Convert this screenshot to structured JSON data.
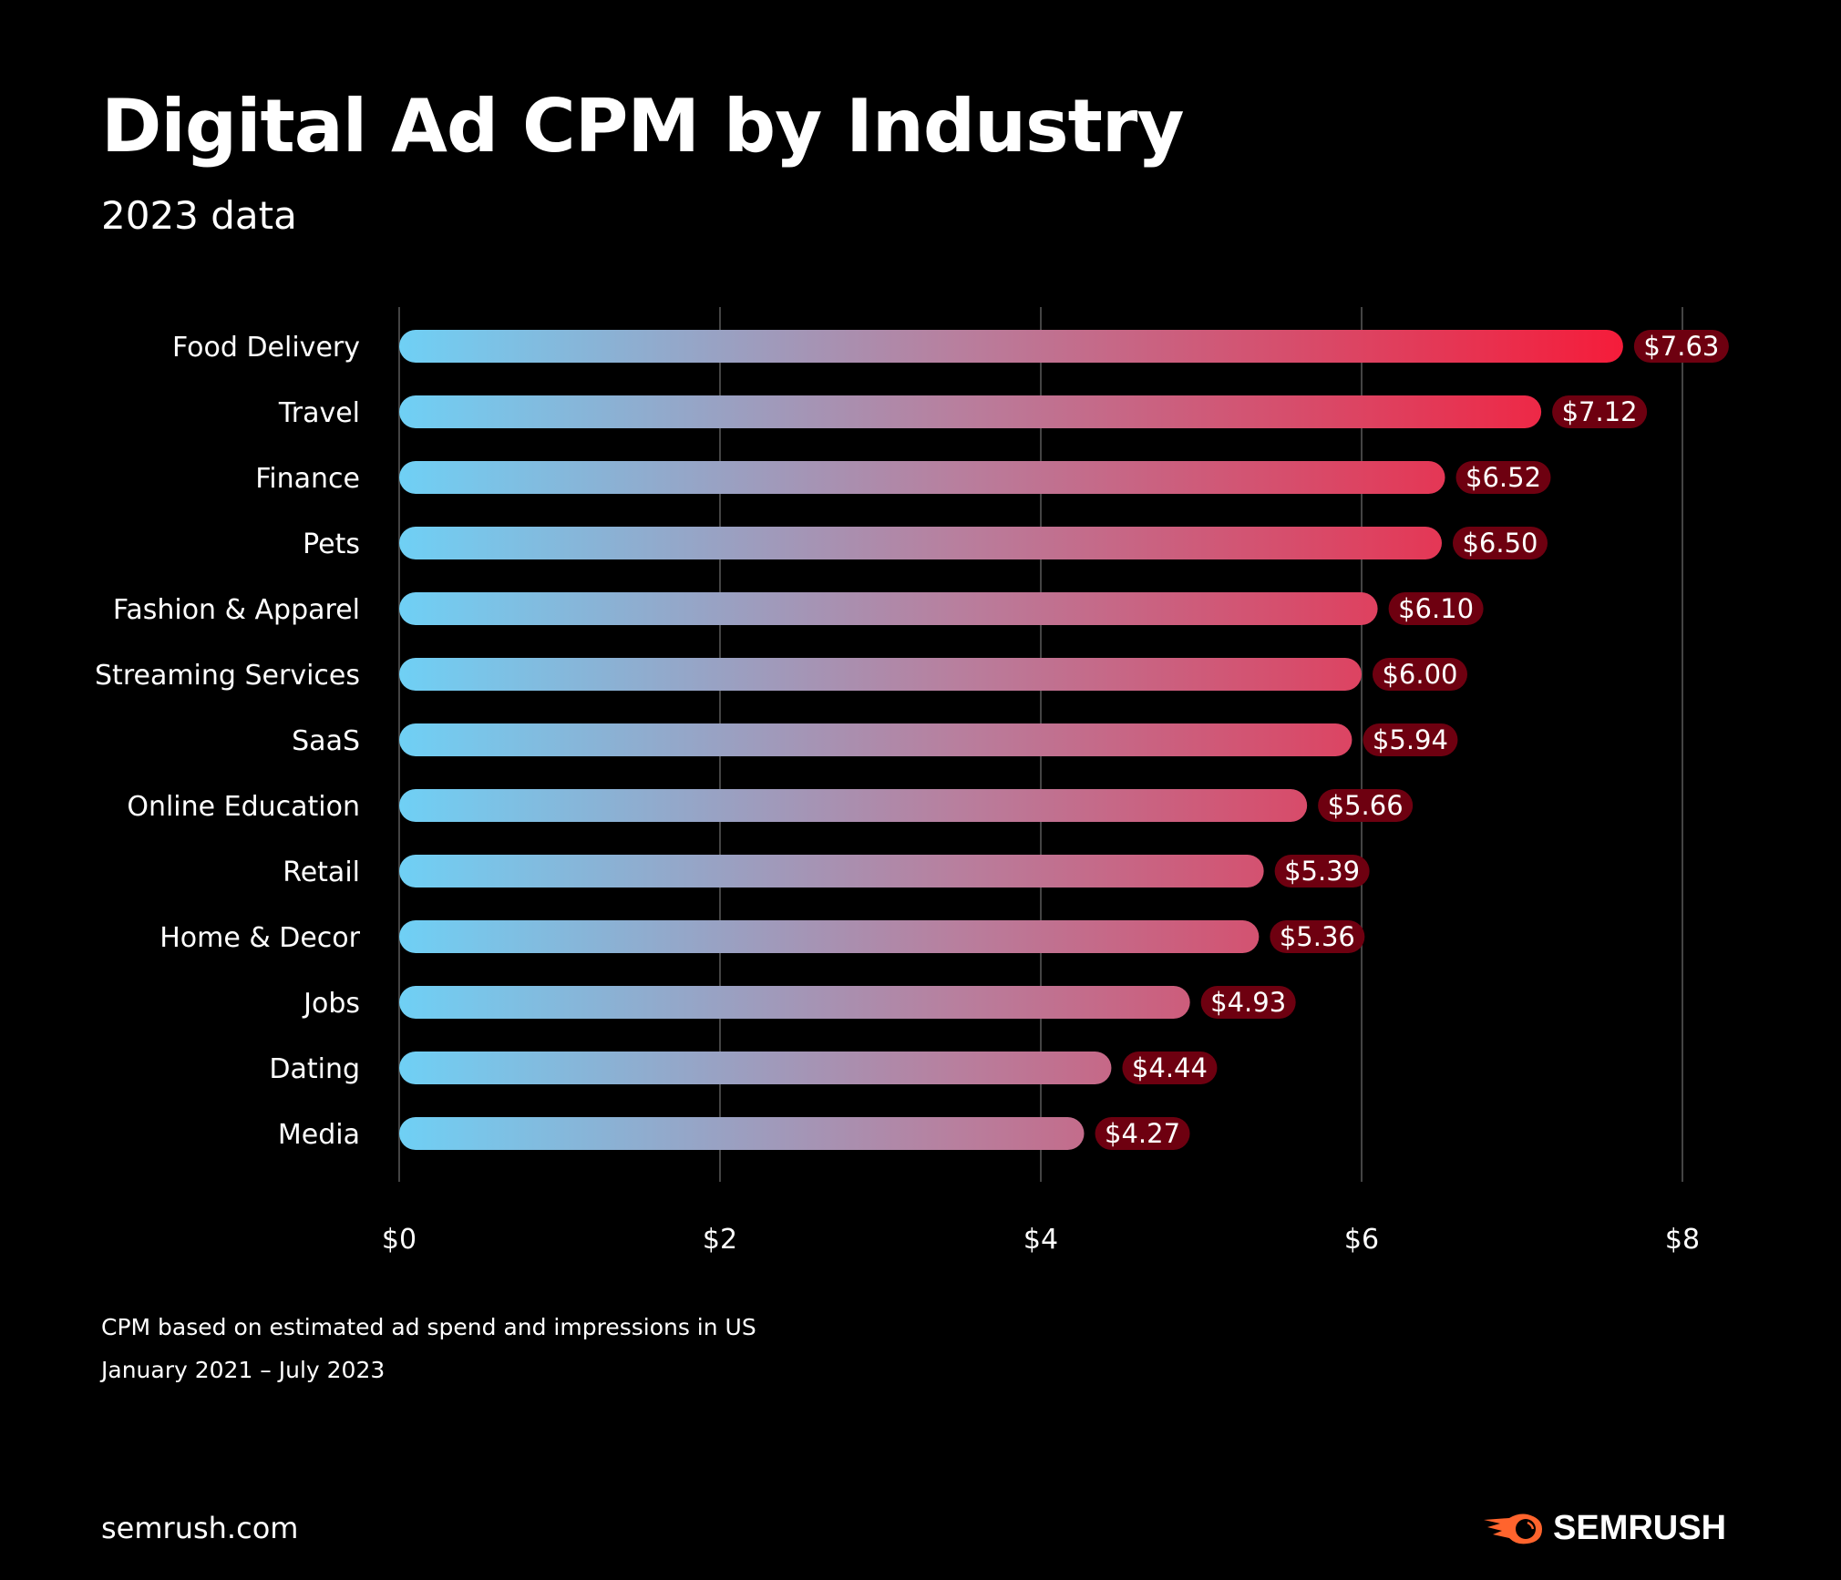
{
  "header": {
    "title": "Digital Ad CPM by Industry",
    "subtitle": "2023 data"
  },
  "chart_data": {
    "type": "bar",
    "orientation": "horizontal",
    "title": "Digital Ad CPM by Industry",
    "subtitle": "2023 data",
    "categories": [
      "Food Delivery",
      "Travel",
      "Finance",
      "Pets",
      "Fashion & Apparel",
      "Streaming Services",
      "SaaS",
      "Online Education",
      "Retail",
      "Home & Decor",
      "Jobs",
      "Dating",
      "Media"
    ],
    "values": [
      7.63,
      7.12,
      6.52,
      6.5,
      6.1,
      6.0,
      5.94,
      5.66,
      5.39,
      5.36,
      4.93,
      4.44,
      4.27
    ],
    "data_labels": [
      "$7.63",
      "$7.12",
      "$6.52",
      "$6.50",
      "$6.10",
      "$6.00",
      "$5.94",
      "$5.66",
      "$5.39",
      "$5.36",
      "$4.93",
      "$4.44",
      "$4.27"
    ],
    "xlim": [
      0,
      8
    ],
    "x_ticks": [
      0,
      2,
      4,
      6,
      8
    ],
    "x_tick_labels": [
      "$0",
      "$2",
      "$4",
      "$6",
      "$8"
    ],
    "xlabel": "",
    "ylabel": "",
    "grid": "vertical",
    "colors": {
      "gradient_start": "#6fd0f5",
      "gradient_end": "#f51c3a",
      "label_bg": "#6e0010",
      "grid": "#444444"
    }
  },
  "footer": {
    "note_line1": "CPM based on estimated ad spend and impressions in US",
    "note_line2": "January 2021 – July 2023",
    "site": "semrush.com",
    "logo_text": "SEMRUSH",
    "logo_color": "#ff642d"
  }
}
